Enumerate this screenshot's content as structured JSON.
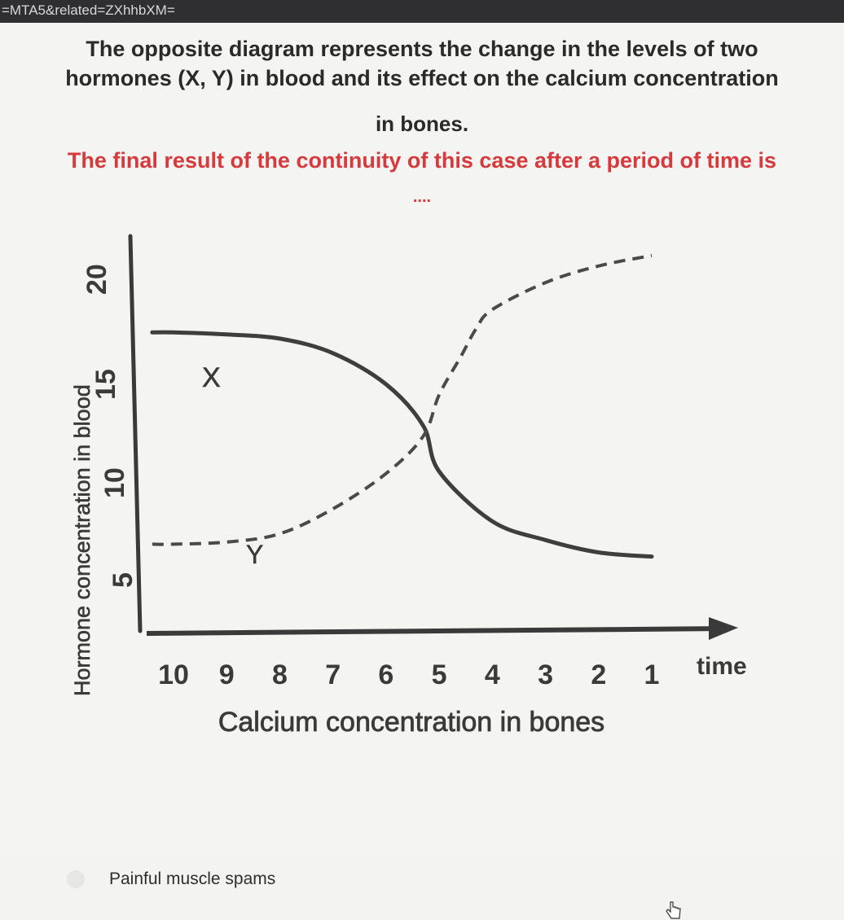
{
  "browser": {
    "url_fragment": "=MTA5&related=ZXhhbXM="
  },
  "question": {
    "line1": "The opposite diagram represents the change in the levels of two",
    "line2": "hormones (X, Y) in blood and its effect on the calcium concentration",
    "line3": "in bones.",
    "prompt": "The final result of the continuity of this case after a period of time is",
    "ellipsis": "....",
    "prompt_color": "#d63a3c"
  },
  "chart_data": {
    "type": "line",
    "ylabel": "Hormone concentration in blood",
    "xlabel": "Calcium concentration in bones",
    "x_end_label": "time",
    "y_ticks": [
      "20",
      "15",
      "10",
      "5"
    ],
    "x_ticks": [
      "10",
      "9",
      "8",
      "7",
      "6",
      "5",
      "4",
      "3",
      "2",
      "1"
    ],
    "ylim": [
      0,
      20
    ],
    "series": [
      {
        "name": "X",
        "style": "solid",
        "x": [
          10.4,
          10,
          9,
          8,
          7,
          6,
          5.3,
          5,
          4,
          3,
          2,
          1
        ],
        "y": [
          14.5,
          14.5,
          14.4,
          14.2,
          13.5,
          12,
          10,
          7.8,
          5.4,
          4.5,
          3.9,
          3.7
        ]
      },
      {
        "name": "Y",
        "style": "dashed",
        "x": [
          10.4,
          10,
          9,
          8,
          7,
          6,
          5.3,
          5,
          4.6,
          4.3,
          4,
          3,
          2,
          1
        ],
        "y": [
          4.3,
          4.3,
          4.4,
          4.8,
          6,
          7.7,
          9.5,
          11.5,
          13.3,
          14.7,
          15.6,
          16.9,
          17.7,
          18.2
        ]
      }
    ]
  },
  "answer": {
    "label": "Painful muscle spams"
  }
}
